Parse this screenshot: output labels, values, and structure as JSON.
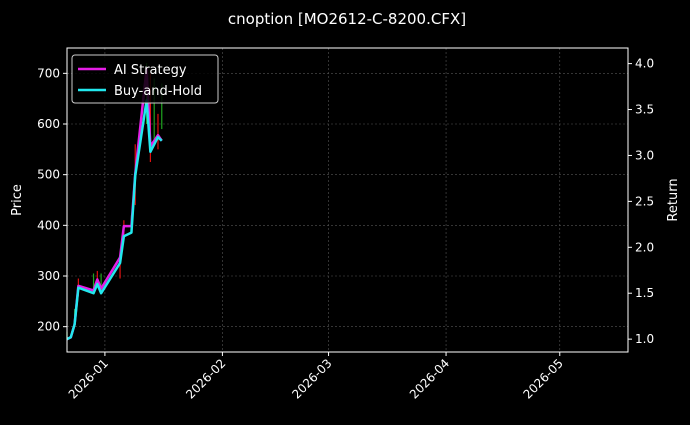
{
  "chart_data": {
    "type": "line",
    "title": "cnoption [MO2612-C-8200.CFX]",
    "xlabel": "",
    "ylabel_left": "Price",
    "ylabel_right": "Return",
    "xlim": [
      "2025-12-22",
      "2026-05-19"
    ],
    "ylim_left": [
      150,
      750
    ],
    "ylim_right": [
      0.86,
      4.17
    ],
    "x_ticks": [
      "2026-01",
      "2026-02",
      "2026-03",
      "2026-04",
      "2026-05"
    ],
    "x_tick_dates": [
      "2026-01-01",
      "2026-02-01",
      "2026-03-01",
      "2026-04-01",
      "2026-05-01"
    ],
    "y_ticks_left": [
      200,
      300,
      400,
      500,
      600,
      700
    ],
    "y_ticks_right": [
      1.0,
      1.5,
      2.0,
      2.5,
      3.0,
      3.5,
      4.0
    ],
    "grid": true,
    "legend": "top-left",
    "colors": {
      "background": "#000000",
      "ai": "#e61ee6",
      "bh": "#22e8ee",
      "up": "#1fa51f",
      "down": "#e01010",
      "grid": "#555555"
    },
    "candles": [
      {
        "date": "2025-12-22",
        "low": 175,
        "high": 190,
        "dir": "up"
      },
      {
        "date": "2025-12-24",
        "low": 205,
        "high": 235,
        "dir": "up"
      },
      {
        "date": "2025-12-25",
        "low": 260,
        "high": 295,
        "dir": "down"
      },
      {
        "date": "2025-12-29",
        "low": 270,
        "high": 305,
        "dir": "up"
      },
      {
        "date": "2025-12-30",
        "low": 280,
        "high": 310,
        "dir": "down"
      },
      {
        "date": "2025-12-31",
        "low": 270,
        "high": 305,
        "dir": "up"
      },
      {
        "date": "2026-01-05",
        "low": 295,
        "high": 330,
        "dir": "down"
      },
      {
        "date": "2026-01-06",
        "low": 380,
        "high": 410,
        "dir": "down"
      },
      {
        "date": "2026-01-08",
        "low": 390,
        "high": 420,
        "dir": "up"
      },
      {
        "date": "2026-01-09",
        "low": 440,
        "high": 560,
        "dir": "down"
      },
      {
        "date": "2026-01-12",
        "low": 600,
        "high": 720,
        "dir": "up"
      },
      {
        "date": "2026-01-13",
        "low": 525,
        "high": 700,
        "dir": "down"
      },
      {
        "date": "2026-01-14",
        "low": 560,
        "high": 690,
        "dir": "up"
      },
      {
        "date": "2026-01-15",
        "low": 550,
        "high": 620,
        "dir": "down"
      },
      {
        "date": "2026-01-16",
        "low": 590,
        "high": 680,
        "dir": "up"
      }
    ],
    "x": [
      "2025-12-22",
      "2025-12-23",
      "2025-12-24",
      "2025-12-25",
      "2025-12-29",
      "2025-12-30",
      "2025-12-31",
      "2026-01-05",
      "2026-01-06",
      "2026-01-08",
      "2026-01-09",
      "2026-01-12",
      "2026-01-13",
      "2026-01-15",
      "2026-01-16"
    ],
    "series": [
      {
        "name": "AI Strategy",
        "axis": "right",
        "values": [
          1.0,
          1.02,
          1.16,
          1.58,
          1.53,
          1.65,
          1.55,
          1.89,
          2.23,
          2.23,
          2.8,
          3.95,
          3.1,
          3.22,
          3.16
        ]
      },
      {
        "name": "Buy-and-Hold",
        "axis": "right",
        "values": [
          1.0,
          1.02,
          1.16,
          1.56,
          1.5,
          1.6,
          1.5,
          1.83,
          2.12,
          2.16,
          2.78,
          3.6,
          3.04,
          3.2,
          3.16
        ]
      }
    ]
  }
}
